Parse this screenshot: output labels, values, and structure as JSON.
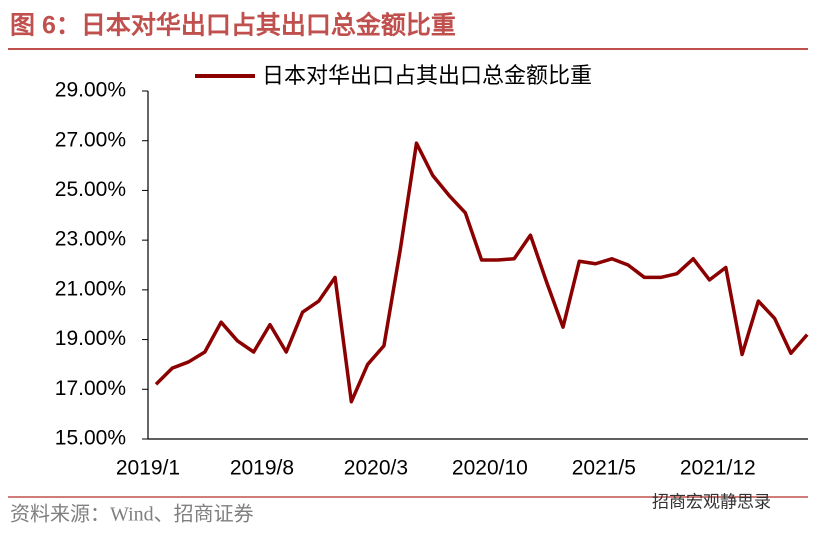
{
  "chart_data": {
    "type": "line",
    "title": "图 6：日本对华出口占其出口总金额比重",
    "source": "资料来源：Wind、招商证券",
    "watermark": "招商宏观静思录",
    "categories": [
      "2019/1",
      null,
      null,
      null,
      null,
      null,
      null,
      "2019/8",
      null,
      null,
      null,
      null,
      null,
      null,
      "2020/3",
      null,
      null,
      null,
      null,
      null,
      null,
      "2020/10",
      null,
      null,
      null,
      null,
      null,
      null,
      "2021/5",
      null,
      null,
      null,
      null,
      null,
      null,
      "2021/12",
      null,
      null,
      null,
      null,
      null
    ],
    "series": [
      {
        "name": "日本对华出口占其出口总金额比重",
        "color": "#8b0000",
        "values": [
          17.2,
          17.85,
          18.1,
          18.5,
          19.7,
          18.95,
          18.5,
          19.6,
          18.5,
          20.1,
          20.55,
          21.5,
          16.5,
          18.0,
          18.75,
          22.6,
          26.9,
          25.6,
          24.8,
          24.1,
          22.2,
          22.2,
          22.25,
          23.2,
          21.3,
          19.5,
          22.15,
          22.05,
          22.25,
          22.0,
          21.5,
          21.5,
          21.65,
          22.25,
          21.4,
          21.9,
          18.4,
          20.55,
          19.85,
          18.45,
          19.2
        ]
      }
    ],
    "ylim": [
      15,
      29
    ],
    "yticks": [
      {
        "value": 15,
        "label": "15.00%"
      },
      {
        "value": 17,
        "label": "17.00%"
      },
      {
        "value": 19,
        "label": "19.00%"
      },
      {
        "value": 21,
        "label": "21.00%"
      },
      {
        "value": 23,
        "label": "23.00%"
      },
      {
        "value": 25,
        "label": "25.00%"
      },
      {
        "value": 27,
        "label": "27.00%"
      },
      {
        "value": 29,
        "label": "29.00%"
      }
    ],
    "legend": "top"
  }
}
